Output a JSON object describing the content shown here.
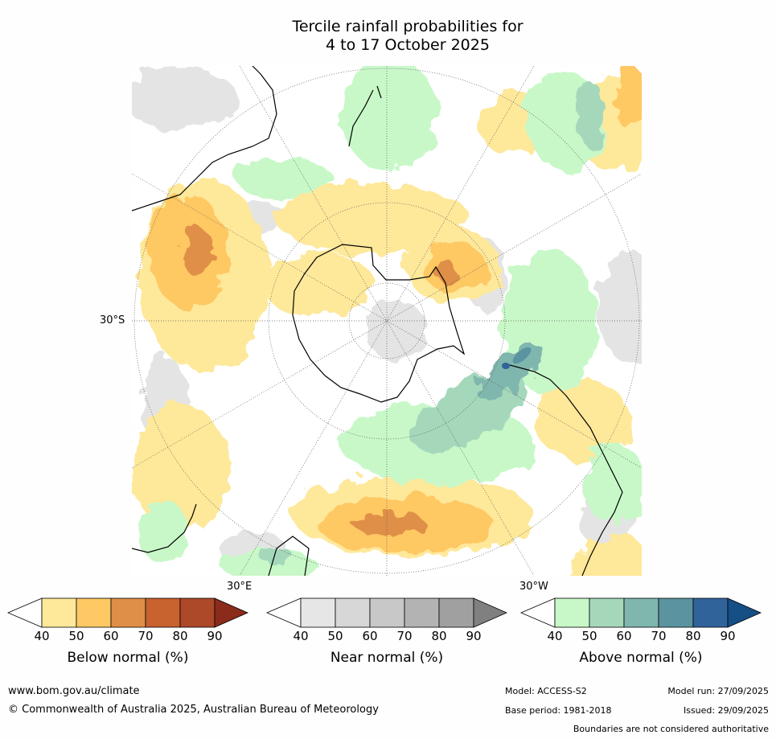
{
  "title": {
    "line1": "Tercile rainfall probabilities for",
    "line2": "4 to 17 October 2025"
  },
  "map": {
    "projection": "south-polar-stereographic",
    "lat_label": "30°S",
    "lon_label_east": "30°E",
    "lon_label_west": "30°W",
    "colors": {
      "land_outline": "#000000",
      "graticule": "#555555"
    }
  },
  "legends": [
    {
      "name": "below",
      "title": "Below normal (%)",
      "ticks": [
        "40",
        "50",
        "60",
        "70",
        "80",
        "90"
      ],
      "colors": [
        "#fee89a",
        "#fec864",
        "#df8f47",
        "#c8622f",
        "#ad4829",
        "#8b2b1b"
      ]
    },
    {
      "name": "near",
      "title": "Near normal (%)",
      "ticks": [
        "40",
        "50",
        "60",
        "70",
        "80",
        "90"
      ],
      "colors": [
        "#e6e6e6",
        "#d7d7d7",
        "#c8c8c8",
        "#b3b3b3",
        "#a0a0a0",
        "#808080"
      ]
    },
    {
      "name": "above",
      "title": "Above normal (%)",
      "ticks": [
        "40",
        "50",
        "60",
        "70",
        "80",
        "90"
      ],
      "colors": [
        "#c8f8c8",
        "#a5d8bb",
        "#7fb6ae",
        "#5b94a0",
        "#31639b",
        "#164e86"
      ]
    }
  ],
  "footer": {
    "website": "www.bom.gov.au/climate",
    "copyright": "© Commonwealth of Australia 2025, Australian Bureau of Meteorology",
    "model": "Model: ACCESS-S2",
    "base_period": "Base period: 1981-2018",
    "model_run": "Model run: 27/09/2025",
    "issued": "Issued: 29/09/2025",
    "disclaimer": "Boundaries are not considered authoritative"
  }
}
